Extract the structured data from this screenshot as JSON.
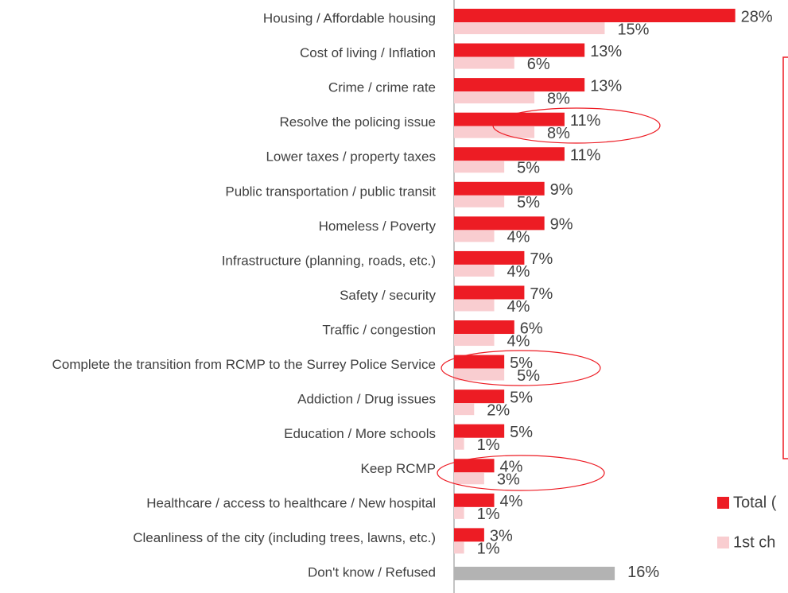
{
  "chart_data": {
    "type": "bar",
    "orientation": "horizontal",
    "categories": [
      "Housing / Affordable housing",
      "Cost of living / Inflation",
      "Crime / crime rate",
      "Resolve the policing issue",
      "Lower taxes / property taxes",
      "Public transportation / public transit",
      "Homeless / Poverty",
      "Infrastructure (planning, roads, etc.)",
      "Safety / security",
      "Traffic / congestion",
      "Complete the transition from RCMP to the Surrey Police Service",
      "Addiction / Drug issues",
      "Education / More schools",
      "Keep RCMP",
      "Healthcare / access to healthcare / New hospital",
      "Cleanliness of the city (including trees, lawns, etc.)",
      "Don't know / Refused"
    ],
    "series": [
      {
        "name": "Total (",
        "color": "#ed1c24",
        "colors": [
          "#ed1c24",
          "#ed1c24",
          "#ed1c24",
          "#ed1c24",
          "#ed1c24",
          "#ed1c24",
          "#ed1c24",
          "#ed1c24",
          "#ed1c24",
          "#ed1c24",
          "#ed1c24",
          "#ed1c24",
          "#ed1c24",
          "#ed1c24",
          "#ed1c24",
          "#ed1c24",
          "#b3b3b3"
        ],
        "values": [
          28,
          13,
          13,
          11,
          11,
          9,
          9,
          7,
          7,
          6,
          5,
          5,
          5,
          4,
          4,
          3,
          16
        ],
        "value_labels": [
          "28%",
          "13%",
          "13%",
          "11%",
          "11%",
          "9%",
          "9%",
          "7%",
          "7%",
          "6%",
          "5%",
          "5%",
          "5%",
          "4%",
          "4%",
          "3%",
          "16%"
        ]
      },
      {
        "name": "1st ch",
        "color": "#f9cdd0",
        "values": [
          15,
          6,
          8,
          8,
          5,
          5,
          4,
          4,
          4,
          4,
          5,
          2,
          1,
          3,
          1,
          1,
          null
        ],
        "value_labels": [
          "15%",
          "6%",
          "8%",
          "8%",
          "5%",
          "5%",
          "4%",
          "4%",
          "4%",
          "4%",
          "5%",
          "2%",
          "1%",
          "3%",
          "1%",
          "1%",
          null
        ]
      }
    ]
  }
}
